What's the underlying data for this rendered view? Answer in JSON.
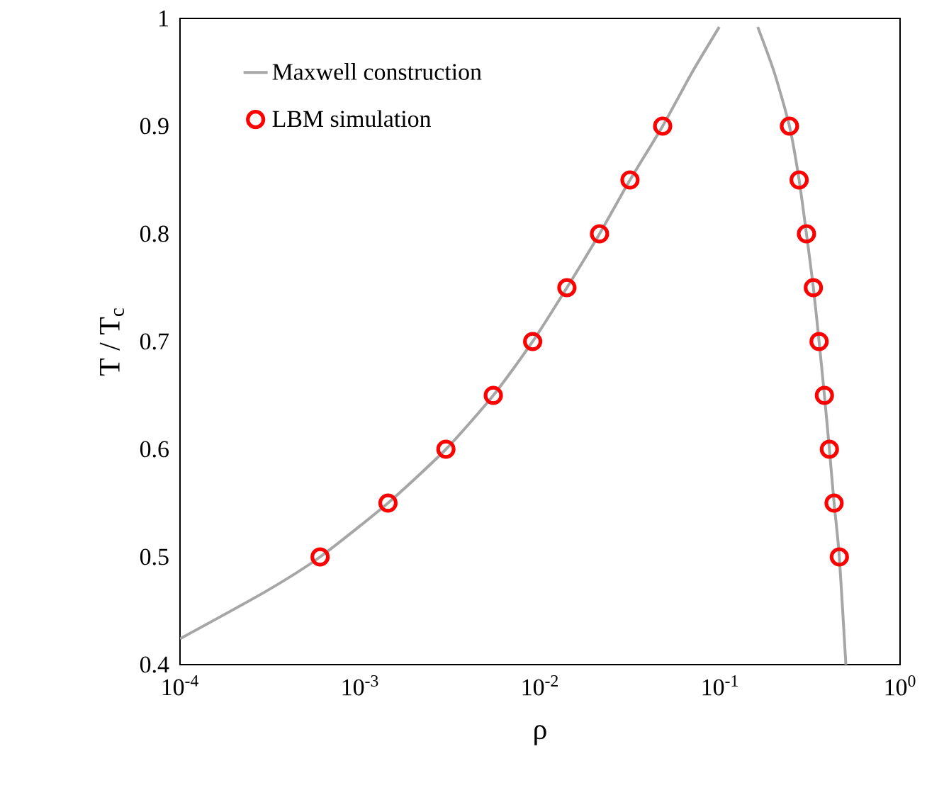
{
  "chart_data": {
    "type": "line",
    "xlabel": "ρ",
    "ylabel": "T / T$_{c}$",
    "log": "x",
    "xlim": [
      0.0001,
      1
    ],
    "ylim": [
      0.4,
      1
    ],
    "xticks": [
      {
        "value": 0.0001,
        "label": "10$^{-4}$"
      },
      {
        "value": 0.001,
        "label": "10$^{-3}$"
      },
      {
        "value": 0.01,
        "label": "10$^{-2}$"
      },
      {
        "value": 0.1,
        "label": "10$^{-1}$"
      },
      {
        "value": 1,
        "label": "10$^{0}$"
      }
    ],
    "yticks": [
      0.4,
      0.5,
      0.6,
      0.7,
      0.8,
      0.9,
      1
    ],
    "grid": false,
    "legend": "top left",
    "series": [
      {
        "name": "Maxwell construction",
        "color": "#a6a6a6",
        "line_style": "solid",
        "marker": "none",
        "x": [
          0.0001,
          0.0003,
          0.0006,
          0.00143,
          0.003,
          0.0055,
          0.0091,
          0.0141,
          0.0214,
          0.0316,
          0.048,
          0.07,
          0.099,
          null,
          0.162,
          0.2,
          0.243,
          0.275,
          0.302,
          0.33,
          0.355,
          0.38,
          0.405,
          0.43,
          0.46,
          0.5
        ],
        "values": [
          0.424,
          0.468,
          0.5,
          0.55,
          0.6,
          0.65,
          0.7,
          0.75,
          0.8,
          0.85,
          0.9,
          0.95,
          0.992,
          null,
          0.992,
          0.95,
          0.9,
          0.85,
          0.8,
          0.75,
          0.7,
          0.65,
          0.6,
          0.55,
          0.5,
          0.4
        ]
      },
      {
        "name": "LBM simulation",
        "type": "scatter",
        "color": "#ff0000",
        "marker": "circle",
        "x": [
          0.0006,
          0.00143,
          0.003,
          0.0055,
          0.0091,
          0.0141,
          0.0214,
          0.0316,
          0.048,
          0.243,
          0.275,
          0.302,
          0.33,
          0.355,
          0.38,
          0.405,
          0.43,
          0.46
        ],
        "values": [
          0.5,
          0.55,
          0.6,
          0.65,
          0.7,
          0.75,
          0.8,
          0.85,
          0.9,
          0.9,
          0.85,
          0.8,
          0.75,
          0.7,
          0.65,
          0.6,
          0.55,
          0.5
        ]
      }
    ]
  }
}
